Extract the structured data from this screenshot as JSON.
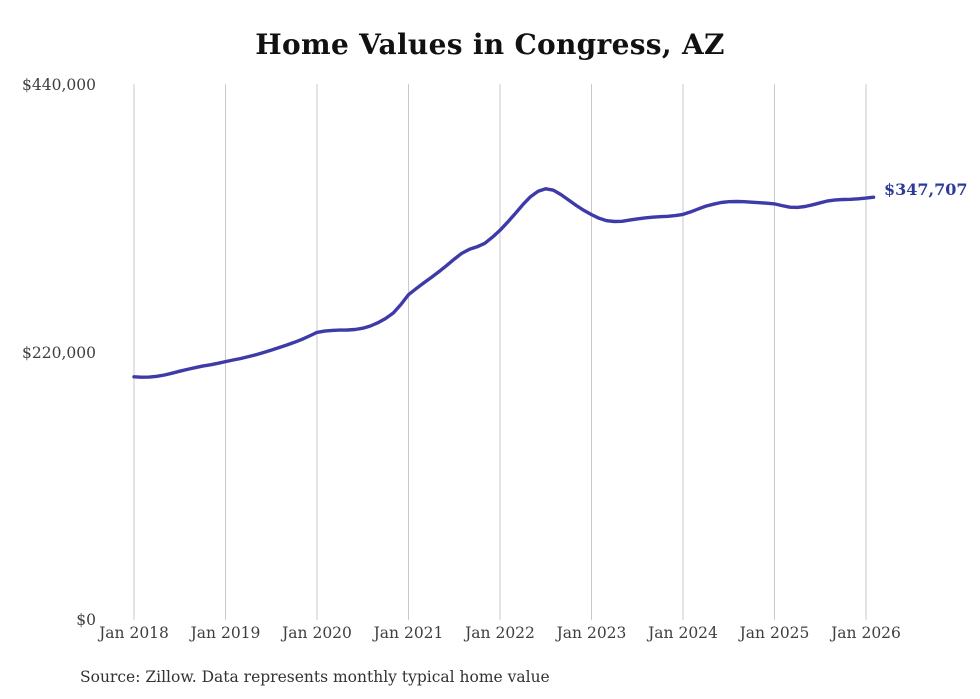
{
  "title": "Home Values in Congress, AZ",
  "source_note": "Source: Zillow. Data represents monthly typical home value",
  "colors": {
    "background": "#ffffff",
    "line": "#3e3ba8",
    "end_label": "#2e3a97",
    "grid": "#c9c9c9",
    "title_text": "#111111",
    "axis_text": "#3f3f3f",
    "source_text": "#333333"
  },
  "chart_data": {
    "type": "line",
    "title": "Home Values in Congress, AZ",
    "xlabel": "",
    "ylabel": "",
    "ylim": [
      0,
      440000
    ],
    "grid": "vertical-only",
    "legend": "none",
    "x_tick_labels": [
      "Jan 2018",
      "Jan 2019",
      "Jan 2020",
      "Jan 2021",
      "Jan 2022",
      "Jan 2023",
      "Jan 2024",
      "Jan 2025",
      "Jan 2026"
    ],
    "y_ticks": [
      {
        "label": "$440,000",
        "value": 440000
      },
      {
        "label": "$220,000",
        "value": 220000
      },
      {
        "label": "$0",
        "value": 0
      }
    ],
    "series": [
      {
        "name": "Typical home value",
        "frequency": "monthly",
        "start": "Jan 2018",
        "end": "Feb 2026",
        "values": [
          200000,
          199700,
          199800,
          200400,
          201500,
          203000,
          204600,
          206100,
          207500,
          208800,
          209900,
          211100,
          212500,
          213800,
          215100,
          216600,
          218200,
          220000,
          222000,
          224000,
          226100,
          228300,
          230800,
          233600,
          236500,
          237600,
          238200,
          238400,
          238500,
          238900,
          240000,
          241800,
          244500,
          248000,
          252500,
          259500,
          267500,
          272500,
          277200,
          281800,
          286500,
          291500,
          296800,
          301700,
          304900,
          306900,
          309800,
          314800,
          320500,
          327200,
          334300,
          341600,
          348100,
          352600,
          354600,
          353500,
          349900,
          345400,
          340900,
          336900,
          333400,
          330400,
          328400,
          327700,
          327900,
          328900,
          329900,
          330700,
          331300,
          331700,
          332000,
          332600,
          333600,
          335600,
          338100,
          340400,
          342000,
          343400,
          344000,
          344200,
          344000,
          343600,
          343200,
          342800,
          342200,
          340800,
          339500,
          339300,
          340100,
          341500,
          343100,
          344700,
          345500,
          345800,
          346000,
          346400,
          347000,
          347707
        ]
      }
    ],
    "final_value": 347707,
    "final_value_label": "$347,707"
  }
}
